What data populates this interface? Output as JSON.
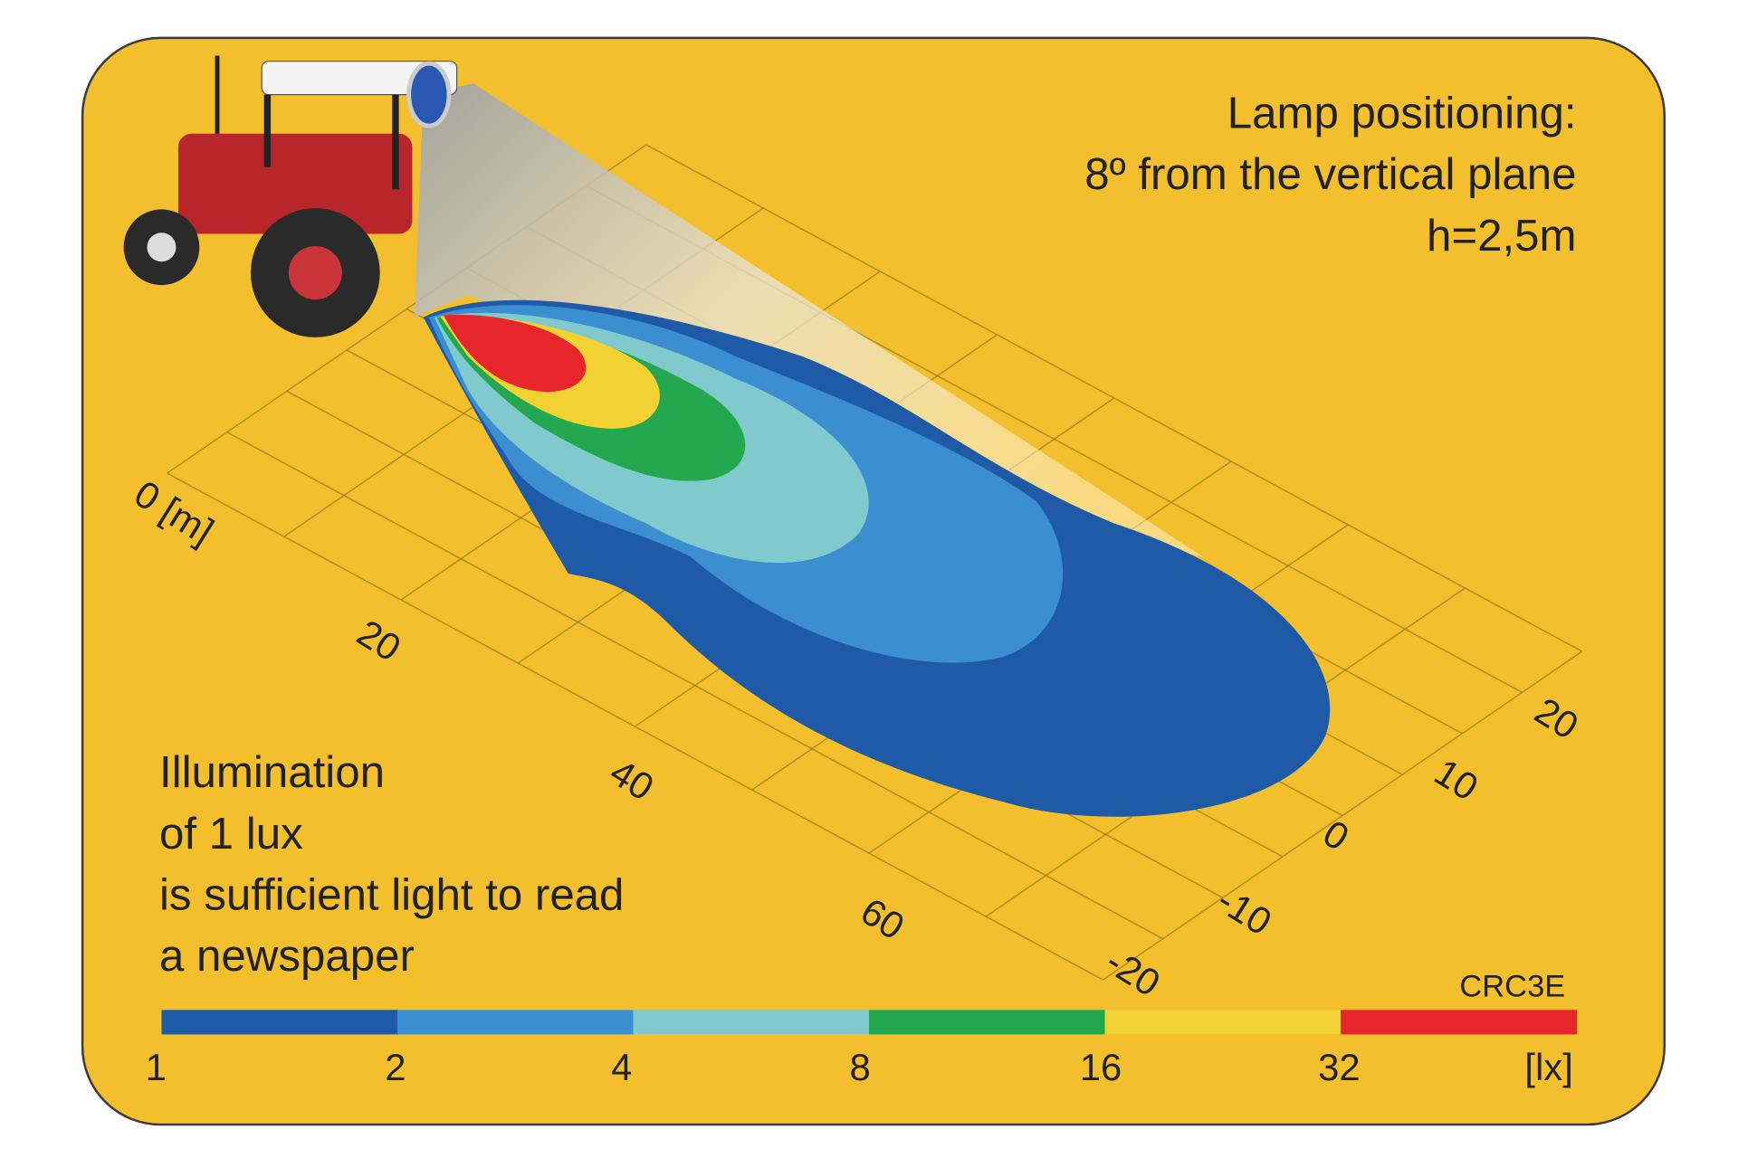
{
  "header": {
    "lines": [
      "Lamp positioning:",
      "8º from the vertical plane",
      "h=2,5m"
    ]
  },
  "note": {
    "lines": [
      "Illumination",
      "of 1 lux",
      "is sufficient light to read",
      "a newspaper"
    ]
  },
  "model": "CRC3E",
  "distance_axis": {
    "labels": [
      "0 [m]",
      "20",
      "40",
      "60"
    ]
  },
  "lateral_axis": {
    "labels": [
      "20",
      "10",
      "0",
      "-10",
      "-20"
    ]
  },
  "legend": {
    "unit": "[lx]",
    "stops": [
      1,
      2,
      4,
      8,
      16,
      32
    ],
    "colors": [
      "#1f5aa6",
      "#3b8fd1",
      "#80cacd",
      "#23a84f",
      "#f2d233",
      "#e7262b"
    ]
  }
}
